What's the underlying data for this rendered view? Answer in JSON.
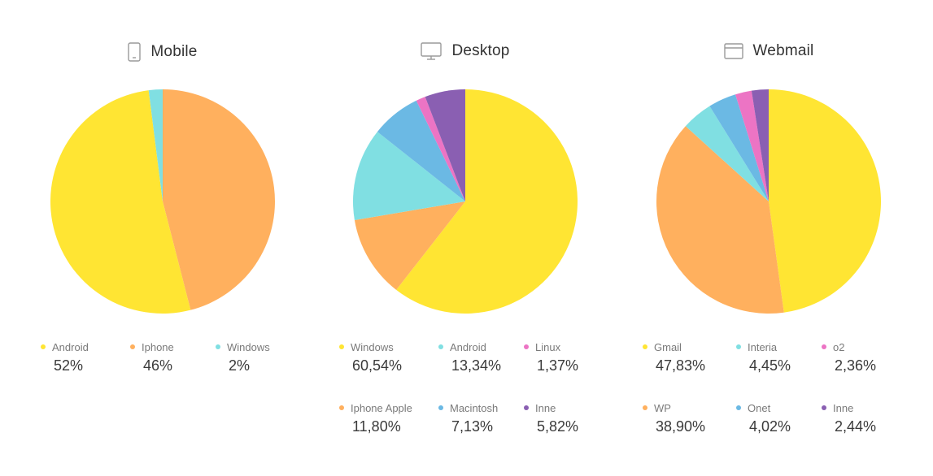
{
  "colors": {
    "yellow": "#FFE533",
    "orange": "#FFB05E",
    "cyan": "#80DFE2",
    "blue": "#6BB9E4",
    "pink": "#EC74C4",
    "purple": "#8A5FB2"
  },
  "panels": [
    {
      "title": "Mobile",
      "icon": "mobile-phone-icon"
    },
    {
      "title": "Desktop",
      "icon": "desktop-monitor-icon"
    },
    {
      "title": "Webmail",
      "icon": "browser-window-icon"
    }
  ],
  "chart_data": [
    {
      "type": "pie",
      "title": "Mobile",
      "slices": [
        {
          "label": "Iphone",
          "display": "46%",
          "value": 46,
          "color": "#FFB05E"
        },
        {
          "label": "Android",
          "display": "52%",
          "value": 52,
          "color": "#FFE533"
        },
        {
          "label": "Windows",
          "display": "2%",
          "value": 2,
          "color": "#80DFE2"
        }
      ],
      "legend": [
        {
          "label": "Android",
          "display": "52%",
          "color": "#FFE533"
        },
        {
          "label": "Iphone",
          "display": "46%",
          "color": "#FFB05E"
        },
        {
          "label": "Windows",
          "display": "2%",
          "color": "#80DFE2"
        }
      ]
    },
    {
      "type": "pie",
      "title": "Desktop",
      "slices": [
        {
          "label": "Windows",
          "display": "60,54%",
          "value": 60.54,
          "color": "#FFE533"
        },
        {
          "label": "Iphone Apple",
          "display": "11,80%",
          "value": 11.8,
          "color": "#FFB05E"
        },
        {
          "label": "Android",
          "display": "13,34%",
          "value": 13.34,
          "color": "#80DFE2"
        },
        {
          "label": "Macintosh",
          "display": "7,13%",
          "value": 7.13,
          "color": "#6BB9E4"
        },
        {
          "label": "Linux",
          "display": "1,37%",
          "value": 1.37,
          "color": "#EC74C4"
        },
        {
          "label": "Inne",
          "display": "5,82%",
          "value": 5.82,
          "color": "#8A5FB2"
        }
      ],
      "legend": [
        {
          "label": "Windows",
          "display": "60,54%",
          "color": "#FFE533"
        },
        {
          "label": "Android",
          "display": "13,34%",
          "color": "#80DFE2"
        },
        {
          "label": "Linux",
          "display": "1,37%",
          "color": "#EC74C4"
        },
        {
          "label": "Iphone Apple",
          "display": "11,80%",
          "color": "#FFB05E"
        },
        {
          "label": "Macintosh",
          "display": "7,13%",
          "color": "#6BB9E4"
        },
        {
          "label": "Inne",
          "display": "5,82%",
          "color": "#8A5FB2"
        }
      ]
    },
    {
      "type": "pie",
      "title": "Webmail",
      "slices": [
        {
          "label": "Gmail",
          "display": "47,83%",
          "value": 47.83,
          "color": "#FFE533"
        },
        {
          "label": "WP",
          "display": "38,90%",
          "value": 38.9,
          "color": "#FFB05E"
        },
        {
          "label": "Interia",
          "display": "4,45%",
          "value": 4.45,
          "color": "#80DFE2"
        },
        {
          "label": "Onet",
          "display": "4,02%",
          "value": 4.02,
          "color": "#6BB9E4"
        },
        {
          "label": "o2",
          "display": "2,36%",
          "value": 2.36,
          "color": "#EC74C4"
        },
        {
          "label": "Inne",
          "display": "2,44%",
          "value": 2.44,
          "color": "#8A5FB2"
        }
      ],
      "legend": [
        {
          "label": "Gmail",
          "display": "47,83%",
          "color": "#FFE533"
        },
        {
          "label": "Interia",
          "display": "4,45%",
          "color": "#80DFE2"
        },
        {
          "label": "o2",
          "display": "2,36%",
          "color": "#EC74C4"
        },
        {
          "label": "WP",
          "display": "38,90%",
          "color": "#FFB05E"
        },
        {
          "label": "Onet",
          "display": "4,02%",
          "color": "#6BB9E4"
        },
        {
          "label": "Inne",
          "display": "2,44%",
          "color": "#8A5FB2"
        }
      ]
    }
  ]
}
